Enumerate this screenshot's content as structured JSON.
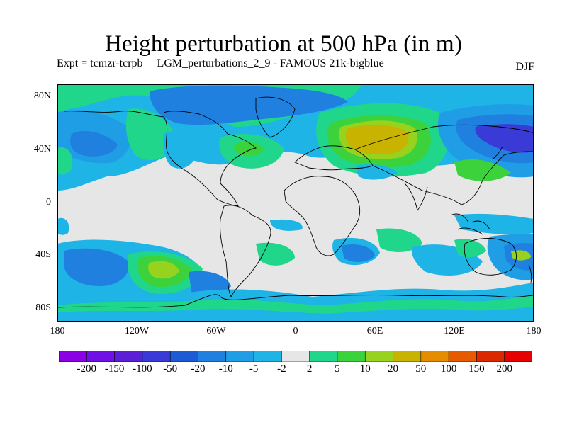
{
  "title": "Height perturbation at 500 hPa (in m)",
  "subtitle": "Expt = tcmzr-tcrpb     LGM_perturbations_2_9 - FAMOUS 21k-bigblue",
  "season": "DJF",
  "lat_ticks": [
    "80N",
    "40N",
    "0",
    "40S",
    "80S"
  ],
  "lon_ticks": [
    "180",
    "120W",
    "60W",
    "0",
    "60E",
    "120E",
    "180"
  ],
  "colorbar": {
    "labels": [
      "-200",
      "-150",
      "-100",
      "-50",
      "-20",
      "-10",
      "-5",
      "-2",
      "2",
      "5",
      "10",
      "20",
      "50",
      "100",
      "150",
      "200"
    ],
    "colors": [
      "#8c00e6",
      "#6e10e6",
      "#5a1fd6",
      "#3a3ad6",
      "#1f5ad6",
      "#1f80e0",
      "#1f9ee6",
      "#1fb4e6",
      "#e6e6e6",
      "#20d68a",
      "#3cd23c",
      "#96d21e",
      "#c8b400",
      "#e68c00",
      "#e65a00",
      "#dc2800",
      "#e60000"
    ]
  },
  "map": {
    "background": "#e6e6e6",
    "lat_range": [
      -90,
      90
    ],
    "lon_range": [
      -180,
      180
    ]
  }
}
